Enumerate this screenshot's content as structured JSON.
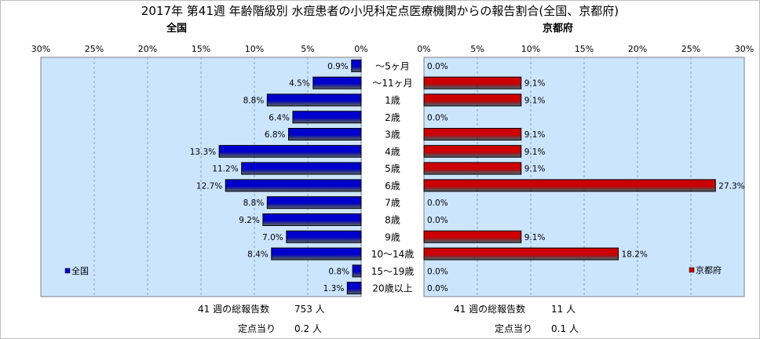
{
  "title": "2017年 第41週 年齢階級別 水痘患者の小児科定点医療機関からの報告割合(全国、京都府)",
  "chart_data": {
    "type": "bar",
    "orientation": "horizontal",
    "categories": [
      "～5ヶ月",
      "～11ヶ月",
      "1歳",
      "2歳",
      "3歳",
      "4歳",
      "5歳",
      "6歳",
      "7歳",
      "8歳",
      "9歳",
      "10～14歳",
      "15～19歳",
      "20歳以上"
    ],
    "xlim": [
      0,
      30
    ],
    "ticks": [
      "0%",
      "5%",
      "10%",
      "15%",
      "20%",
      "25%",
      "30%"
    ],
    "series": [
      {
        "name": "全国",
        "color": "#0000cc",
        "values": [
          0.9,
          4.5,
          8.8,
          6.4,
          6.8,
          13.3,
          11.2,
          12.7,
          8.8,
          9.2,
          7.0,
          8.4,
          0.8,
          1.3
        ],
        "labels": [
          "0.9%",
          "4.5%",
          "8.8%",
          "6.4%",
          "6.8%",
          "13.3%",
          "11.2%",
          "12.7%",
          "8.8%",
          "9.2%",
          "7.0%",
          "8.4%",
          "0.8%",
          "1.3%"
        ]
      },
      {
        "name": "京都府",
        "color": "#cc0000",
        "values": [
          0.0,
          9.1,
          9.1,
          0.0,
          9.1,
          9.1,
          9.1,
          27.3,
          0.0,
          0.0,
          9.1,
          18.2,
          0.0,
          0.0
        ],
        "labels": [
          "0.0%",
          "9.1%",
          "9.1%",
          "0.0%",
          "9.1%",
          "9.1%",
          "9.1%",
          "27.3%",
          "0.0%",
          "0.0%",
          "9.1%",
          "18.2%",
          "0.0%",
          "0.0%"
        ]
      }
    ],
    "grid": true,
    "legend": {
      "left": "bottom-left",
      "right": "bottom-right"
    }
  },
  "panels": {
    "left": {
      "subtitle": "全国",
      "total_label": "41 週の総報告数",
      "total_value": "753 人",
      "per_label": "定点当り",
      "per_value": "0.2 人"
    },
    "right": {
      "subtitle": "京都府",
      "total_label": "41 週の総報告数",
      "total_value": "11 人",
      "per_label": "定点当り",
      "per_value": "0.1 人"
    }
  },
  "colors": {
    "plot_bg": "#cce5ff",
    "grid": "#8aa3bd"
  }
}
